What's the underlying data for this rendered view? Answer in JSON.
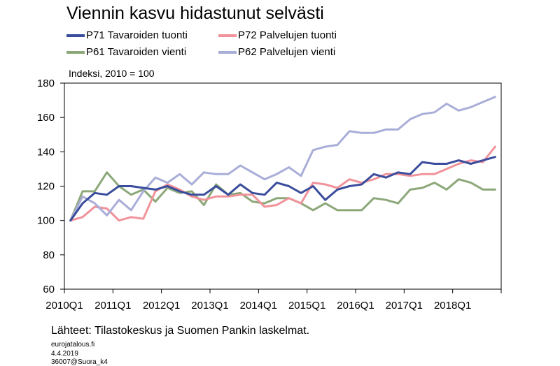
{
  "page": {
    "source": "Lähteet: Tilastokeskus ja Suomen Pankin laskelmat.",
    "footer_lines": [
      "eurojatalous.fi",
      "4.4.2019",
      "36007@Suora_k4"
    ]
  },
  "chart_data": {
    "type": "line",
    "title": "Viennin kasvu hidastunut selvästi",
    "unit_label": "Indeksi, 2010 = 100",
    "xlabel": "",
    "ylabel": "",
    "ylim": [
      60,
      180
    ],
    "yticks": [
      60,
      80,
      100,
      120,
      140,
      160,
      180
    ],
    "grid": false,
    "legend_position": "top",
    "x": [
      "2010Q1",
      "2010Q2",
      "2010Q3",
      "2010Q4",
      "2011Q1",
      "2011Q2",
      "2011Q3",
      "2011Q4",
      "2012Q1",
      "2012Q2",
      "2012Q3",
      "2012Q4",
      "2013Q1",
      "2013Q2",
      "2013Q3",
      "2013Q4",
      "2014Q1",
      "2014Q2",
      "2014Q3",
      "2014Q4",
      "2015Q1",
      "2015Q2",
      "2015Q3",
      "2015Q4",
      "2016Q1",
      "2016Q2",
      "2016Q3",
      "2016Q4",
      "2017Q1",
      "2017Q2",
      "2017Q3",
      "2017Q4",
      "2018Q1",
      "2018Q2",
      "2018Q3",
      "2018Q4"
    ],
    "xtick_labels": [
      "2010Q1",
      "2011Q1",
      "2012Q1",
      "2013Q1",
      "2014Q1",
      "2015Q1",
      "2016Q1",
      "2017Q1",
      "2018Q1"
    ],
    "series": [
      {
        "name": "P71 Tavaroiden tuonti",
        "color": "#3a4d9c",
        "values": [
          100,
          110,
          116,
          115,
          120,
          120,
          119,
          118,
          120,
          117,
          115,
          115,
          120,
          115,
          121,
          116,
          115,
          122,
          120,
          116,
          120,
          112,
          118,
          120,
          121,
          127,
          125,
          128,
          127,
          134,
          133,
          133,
          135,
          133,
          135,
          137
        ]
      },
      {
        "name": "P72 Palvelujen tuonti",
        "color": "#f0939b",
        "values": [
          100,
          102,
          108,
          107,
          100,
          102,
          101,
          117,
          121,
          118,
          114,
          112,
          114,
          114,
          115,
          115,
          108,
          109,
          113,
          110,
          122,
          121,
          119,
          124,
          122,
          124,
          127,
          127,
          126,
          127,
          127,
          130,
          133,
          135,
          134,
          143
        ]
      },
      {
        "name": "P61 Tavaroiden vienti",
        "color": "#8ca879",
        "values": [
          100,
          117,
          117,
          128,
          120,
          115,
          118,
          111,
          119,
          116,
          117,
          109,
          121,
          115,
          116,
          111,
          110,
          113,
          113,
          110,
          106,
          110,
          106,
          106,
          106,
          113,
          112,
          110,
          118,
          119,
          122,
          118,
          124,
          122,
          118,
          118
        ]
      },
      {
        "name": "P62 Palvelujen vienti",
        "color": "#a9aed8",
        "values": [
          100,
          114,
          110,
          103,
          112,
          106,
          117,
          125,
          122,
          127,
          121,
          128,
          127,
          127,
          132,
          128,
          124,
          127,
          131,
          126,
          141,
          143,
          144,
          152,
          151,
          151,
          153,
          153,
          159,
          162,
          163,
          168,
          164,
          166,
          169,
          172
        ]
      }
    ]
  }
}
